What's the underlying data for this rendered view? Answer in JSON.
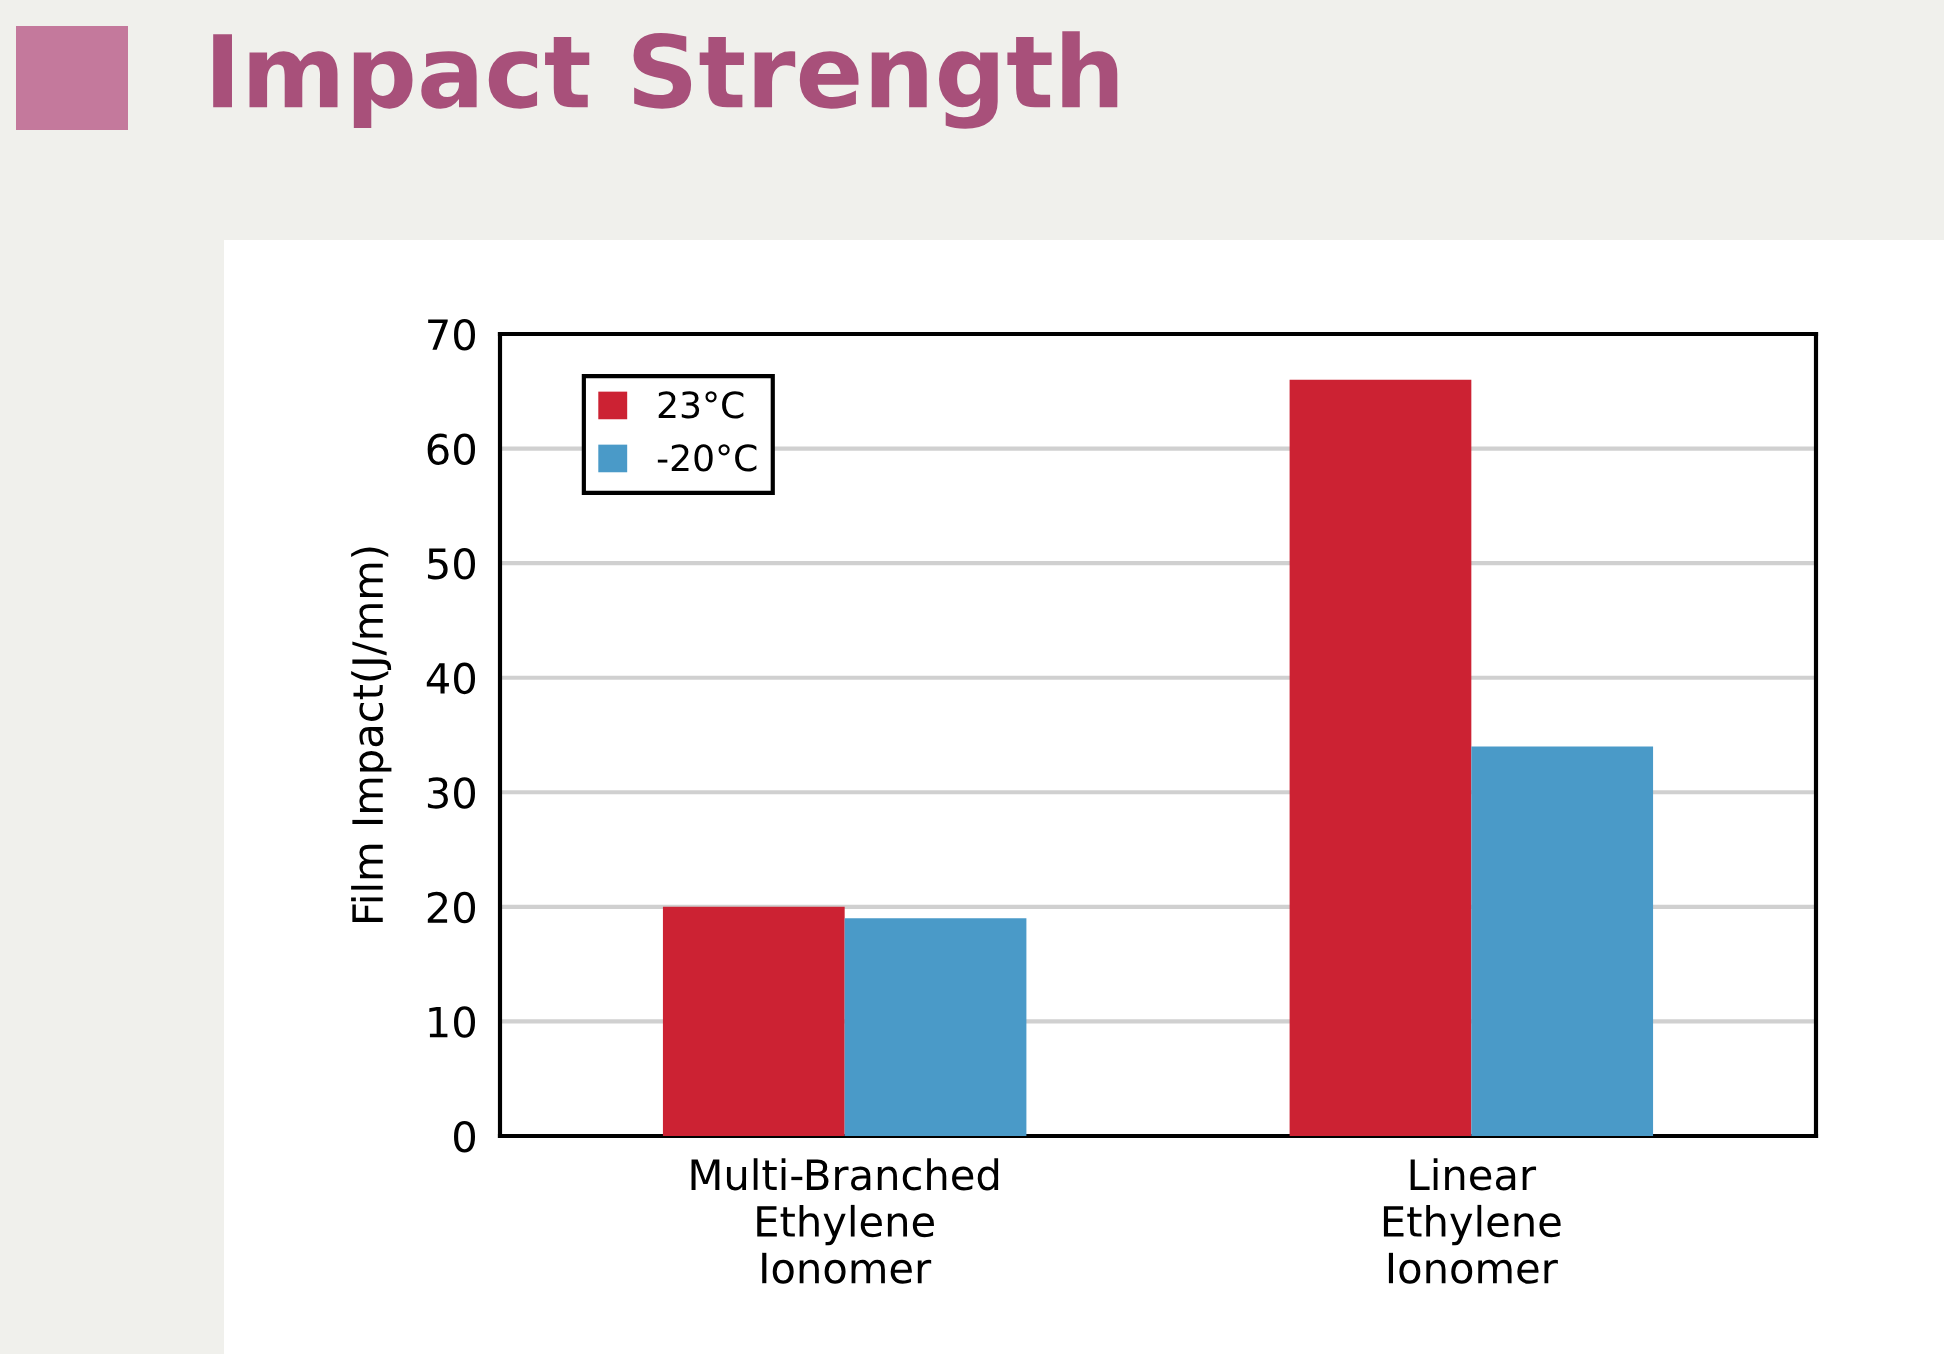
{
  "chart_data": {
    "type": "bar",
    "title": "Impact Strength",
    "ylabel": "Film Impact(J/mm)",
    "categories": [
      "Multi-Branched\nEthylene\nIonomer",
      "Linear\nEthylene\nIonomer"
    ],
    "series": [
      {
        "name": "23°C",
        "color": "#cc2233",
        "values": [
          20,
          66
        ]
      },
      {
        "name": "-20°C",
        "color": "#4a9ac8",
        "values": [
          19,
          34
        ]
      }
    ],
    "ylim": [
      0,
      70
    ],
    "yticks": [
      0,
      10,
      20,
      30,
      40,
      50,
      60,
      70
    ],
    "grid": "y",
    "legend": "top left"
  }
}
